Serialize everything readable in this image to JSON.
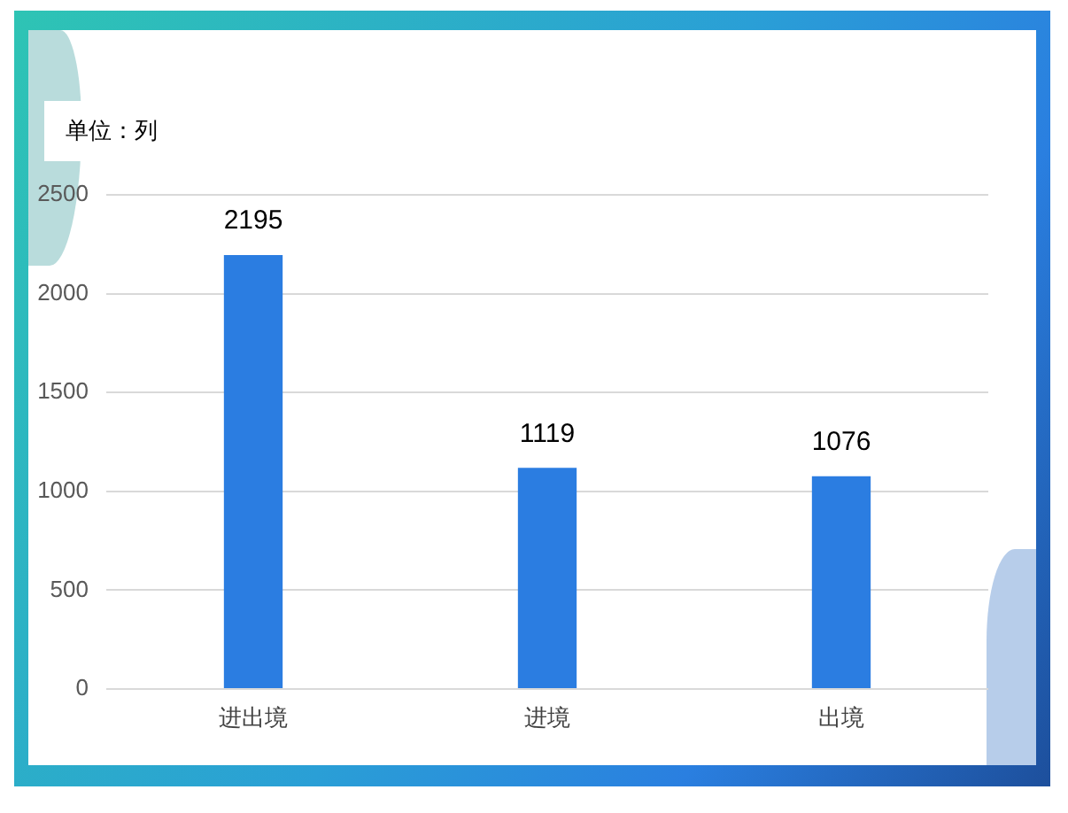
{
  "chart_data": {
    "type": "bar",
    "annotations": [
      "单位：列"
    ],
    "categories": [
      "进出境",
      "进境",
      "出境"
    ],
    "values": [
      2195,
      1119,
      1076
    ],
    "color": "#2b7de1",
    "ylim": [
      0,
      2500
    ],
    "yticks": [
      0,
      500,
      1000,
      1500,
      2000,
      2500
    ],
    "grid": "y",
    "data_labels": true
  }
}
